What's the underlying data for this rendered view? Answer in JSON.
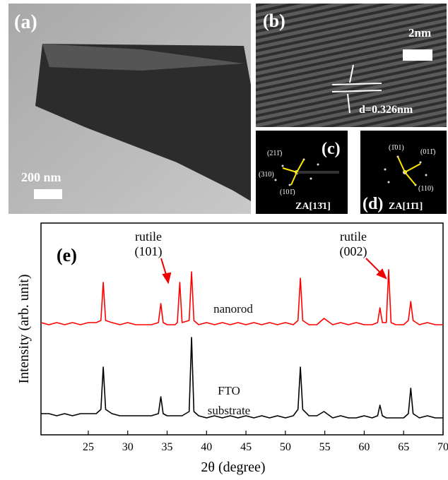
{
  "panels": {
    "a": {
      "label": "(a)",
      "scale": "200 nm"
    },
    "b": {
      "label": "(b)",
      "scale": "2nm",
      "spacing": "d=0.326nm"
    },
    "c": {
      "label": "(c)",
      "spots": [
        "(211̄)",
        "(310)",
        "(101̄)"
      ],
      "zone": "ZA[13̄1]"
    },
    "d": {
      "label": "(d)",
      "spots": [
        "(1̄01)",
        "(011̄)",
        "(110)"
      ],
      "zone": "ZA[11̄1]"
    }
  },
  "chart_data": {
    "type": "line",
    "panel_label": "(e)",
    "x_label": "2θ (degree)",
    "y_label": "Intensity (arb. unit)",
    "xlim": [
      19,
      70
    ],
    "ylim": [
      0,
      100
    ],
    "xticks": [
      25,
      30,
      35,
      40,
      45,
      50,
      55,
      60,
      65,
      70
    ],
    "annotations": [
      {
        "text": "rutile",
        "index": "(101)"
      },
      {
        "text": "rutile",
        "index": "(002)"
      }
    ],
    "x": [
      19,
      20,
      21,
      22,
      23,
      24,
      25,
      26,
      26.6,
      26.9,
      27.2,
      28,
      29,
      30,
      31,
      32,
      33,
      33.9,
      34.2,
      34.5,
      35,
      36,
      36.3,
      36.6,
      36.9,
      37.8,
      38.1,
      38.4,
      39,
      40,
      41,
      42,
      43,
      44,
      45,
      46,
      47,
      48,
      49,
      50,
      51,
      51.6,
      51.9,
      52.2,
      53,
      54,
      54.9,
      56,
      57,
      58,
      59,
      60,
      61,
      61.7,
      62,
      62.3,
      62.8,
      63.1,
      63.4,
      64,
      65,
      65.6,
      65.9,
      66.2,
      67,
      68,
      69,
      70
    ],
    "series": [
      {
        "name": "nanorod",
        "color": "#ff0000",
        "values": [
          53,
          52,
          53,
          52,
          53,
          52,
          53,
          53,
          54,
          72,
          54,
          53,
          52,
          53,
          52,
          52,
          52,
          53,
          62,
          53,
          52,
          52,
          53,
          72,
          53,
          54,
          77,
          54,
          52,
          53,
          52,
          53,
          52,
          53,
          52,
          53,
          52,
          53,
          52,
          53,
          52,
          54,
          74,
          54,
          52,
          52,
          55,
          52,
          53,
          52,
          53,
          52,
          52,
          53,
          60,
          53,
          53,
          78,
          53,
          52,
          52,
          54,
          63,
          54,
          52,
          53,
          52,
          52
        ]
      },
      {
        "name": "FTO substrate",
        "color": "#000000",
        "values": [
          10,
          10,
          9,
          10,
          9,
          10,
          10,
          10,
          12,
          32,
          12,
          10,
          9,
          9,
          9,
          9,
          9,
          10,
          18,
          10,
          9,
          9,
          9,
          9,
          9,
          11,
          46,
          11,
          9,
          8,
          9,
          8,
          9,
          8,
          9,
          8,
          9,
          8,
          9,
          8,
          9,
          12,
          32,
          12,
          9,
          9,
          11,
          8,
          9,
          8,
          8,
          9,
          8,
          9,
          14,
          9,
          8,
          8,
          8,
          8,
          8,
          10,
          22,
          10,
          8,
          9,
          8,
          8
        ]
      }
    ]
  }
}
